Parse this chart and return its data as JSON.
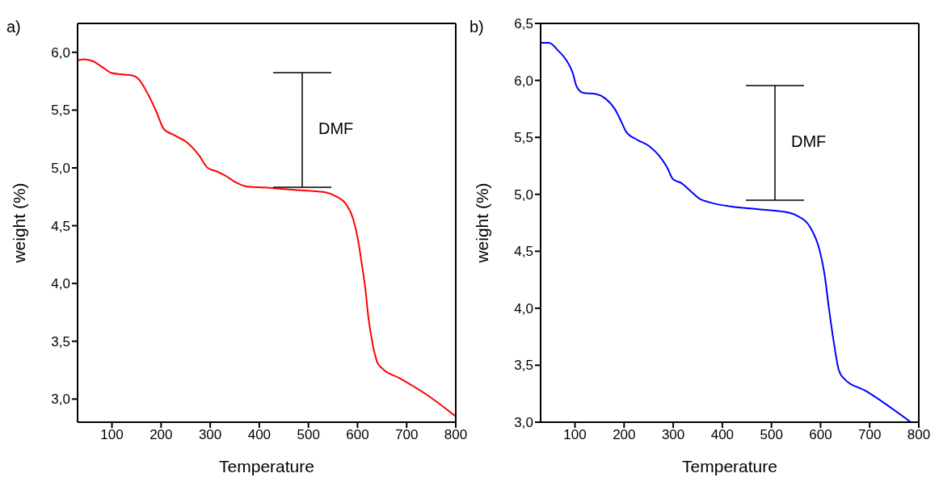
{
  "chart_data": [
    {
      "type": "line",
      "title": "a)",
      "xlabel": "Temperature",
      "ylabel": "weight (%)",
      "xlim": [
        30,
        800
      ],
      "ylim": [
        2.8,
        6.25
      ],
      "xticks": [
        100,
        200,
        300,
        400,
        500,
        600,
        700,
        800
      ],
      "yticks": [
        {
          "value": 3,
          "label": "3,0"
        },
        {
          "value": 3.5,
          "label": "3,5"
        },
        {
          "value": 4,
          "label": "4,0"
        },
        {
          "value": 4.5,
          "label": "4,5"
        },
        {
          "value": 5,
          "label": "5,0"
        },
        {
          "value": 5.5,
          "label": "5,5"
        },
        {
          "value": 6,
          "label": "6,0"
        }
      ],
      "legend": false,
      "annotations": [
        "DMF"
      ],
      "series": [
        {
          "color": "#ff0000",
          "x": [
            31,
            44,
            63,
            81,
            100,
            118,
            142,
            154,
            173,
            191,
            205,
            228,
            253,
            277,
            295,
            313,
            332,
            350,
            374,
            411,
            472,
            533,
            558,
            576,
            591,
            600,
            609,
            616,
            622,
            631,
            640,
            649,
            686,
            747,
            800
          ],
          "values": [
            5.93,
            5.94,
            5.92,
            5.87,
            5.82,
            5.81,
            5.8,
            5.77,
            5.64,
            5.48,
            5.34,
            5.28,
            5.22,
            5.11,
            5.0,
            4.97,
            4.93,
            4.88,
            4.84,
            4.83,
            4.81,
            4.79,
            4.75,
            4.69,
            4.56,
            4.4,
            4.16,
            3.95,
            3.71,
            3.47,
            3.32,
            3.27,
            3.18,
            3.02,
            2.85
          ]
        }
      ]
    },
    {
      "type": "line",
      "title": "b)",
      "xlabel": "Temperature",
      "ylabel": "weight (%)",
      "xlim": [
        30,
        800
      ],
      "ylim": [
        3.0,
        6.5
      ],
      "xticks": [
        100,
        200,
        300,
        400,
        500,
        600,
        700,
        800
      ],
      "yticks": [
        {
          "value": 3,
          "label": "3,0"
        },
        {
          "value": 3.5,
          "label": "3,5"
        },
        {
          "value": 4,
          "label": "4,0"
        },
        {
          "value": 4.5,
          "label": "4,5"
        },
        {
          "value": 5,
          "label": "5,0"
        },
        {
          "value": 5.5,
          "label": "5,5"
        },
        {
          "value": 6,
          "label": "6,0"
        },
        {
          "value": 6.5,
          "label": "6,5"
        }
      ],
      "legend": false,
      "annotations": [
        "DMF"
      ],
      "series": [
        {
          "color": "#0000ff",
          "x": [
            31,
            47,
            66,
            82,
            95,
            104,
            117,
            143,
            162,
            181,
            194,
            204,
            226,
            252,
            271,
            287,
            300,
            316,
            335,
            354,
            374,
            406,
            470,
            521,
            553,
            579,
            598,
            608,
            617,
            627,
            637,
            646,
            694,
            784
          ],
          "values": [
            6.33,
            6.33,
            6.26,
            6.18,
            6.07,
            5.94,
            5.89,
            5.88,
            5.84,
            5.75,
            5.64,
            5.55,
            5.48,
            5.42,
            5.34,
            5.24,
            5.13,
            5.1,
            5.03,
            4.96,
            4.93,
            4.9,
            4.87,
            4.85,
            4.81,
            4.71,
            4.51,
            4.3,
            4.0,
            3.7,
            3.46,
            3.39,
            3.27,
            3.0
          ]
        }
      ]
    }
  ]
}
